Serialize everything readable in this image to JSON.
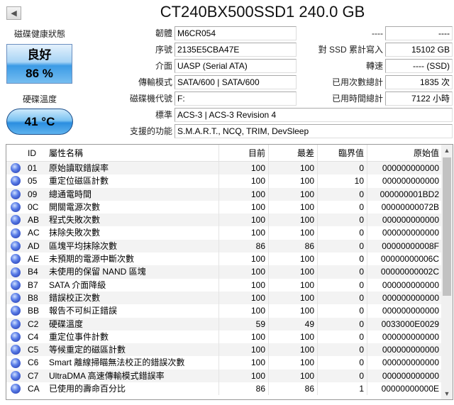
{
  "title": "CT240BX500SSD1 240.0 GB",
  "health": {
    "label": "磁碟健康狀態",
    "status": "良好",
    "percent": "86 %",
    "color": "#3b9be6"
  },
  "temperature": {
    "label": "硬碟溫度",
    "value": "41 °C"
  },
  "info_left": [
    {
      "label": "韌體",
      "value": "M6CR054"
    },
    {
      "label": "序號",
      "value": "2135E5CBA47E"
    },
    {
      "label": "介面",
      "value": "UASP (Serial ATA)"
    },
    {
      "label": "傳輸模式",
      "value": "SATA/600 | SATA/600"
    },
    {
      "label": "磁碟機代號",
      "value": "F:"
    }
  ],
  "info_right": [
    {
      "label": "----",
      "value": "----"
    },
    {
      "label": "對 SSD 累計寫入",
      "value": "15102 GB"
    },
    {
      "label": "轉速",
      "value": "---- (SSD)"
    },
    {
      "label": "已用次數總計",
      "value": "1835 次"
    },
    {
      "label": "已用時間總計",
      "value": "7122 小時"
    }
  ],
  "info_wide": [
    {
      "label": "標準",
      "value": "ACS-3 | ACS-3 Revision 4"
    },
    {
      "label": "支援的功能",
      "value": "S.M.A.R.T., NCQ, TRIM, DevSleep"
    }
  ],
  "smart": {
    "headers": [
      "ID",
      "屬性名稱",
      "目前",
      "最差",
      "臨界值",
      "原始值"
    ],
    "rows": [
      [
        "01",
        "原始讀取錯誤率",
        "100",
        "100",
        "0",
        "000000000000"
      ],
      [
        "05",
        "重定位磁區計數",
        "100",
        "100",
        "10",
        "000000000000"
      ],
      [
        "09",
        "總通電時間",
        "100",
        "100",
        "0",
        "000000001BD2"
      ],
      [
        "0C",
        "開關電源次數",
        "100",
        "100",
        "0",
        "00000000072B"
      ],
      [
        "AB",
        "程式失敗次數",
        "100",
        "100",
        "0",
        "000000000000"
      ],
      [
        "AC",
        "抹除失敗次數",
        "100",
        "100",
        "0",
        "000000000000"
      ],
      [
        "AD",
        "區塊平均抹除次數",
        "86",
        "86",
        "0",
        "00000000008F"
      ],
      [
        "AE",
        "未預期的電源中斷次數",
        "100",
        "100",
        "0",
        "00000000006C"
      ],
      [
        "B4",
        "未使用的保留 NAND 區塊",
        "100",
        "100",
        "0",
        "00000000002C"
      ],
      [
        "B7",
        "SATA 介面降級",
        "100",
        "100",
        "0",
        "000000000000"
      ],
      [
        "B8",
        "錯誤校正次數",
        "100",
        "100",
        "0",
        "000000000000"
      ],
      [
        "BB",
        "報告不可糾正錯誤",
        "100",
        "100",
        "0",
        "000000000000"
      ],
      [
        "C2",
        "硬碟溫度",
        "59",
        "49",
        "0",
        "0033000E0029"
      ],
      [
        "C4",
        "重定位事件計數",
        "100",
        "100",
        "0",
        "000000000000"
      ],
      [
        "C5",
        "等候重定的磁區計數",
        "100",
        "100",
        "0",
        "000000000000"
      ],
      [
        "C6",
        "Smart 離線掃瞄無法校正的錯誤次數",
        "100",
        "100",
        "0",
        "000000000000"
      ],
      [
        "C7",
        "UltraDMA 高速傳輸模式錯誤率",
        "100",
        "100",
        "0",
        "000000000000"
      ],
      [
        "CA",
        "已使用的壽命百分比",
        "86",
        "86",
        "1",
        "00000000000E"
      ]
    ]
  }
}
